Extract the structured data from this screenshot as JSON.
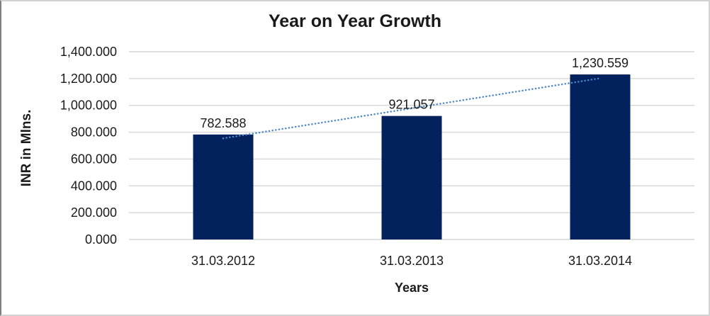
{
  "frame": {
    "background": "#ffffff",
    "border_color": "#d2d2d2",
    "border_left_color": "#7f7f7f"
  },
  "chart_data": {
    "type": "bar",
    "title": "Year on Year Growth",
    "xlabel": "Years",
    "ylabel": "INR in Mlns.",
    "categories": [
      "31.03.2012",
      "31.03.2013",
      "31.03.2014"
    ],
    "values": [
      782.588,
      921.057,
      1230.559
    ],
    "value_labels": [
      "782.588",
      "921.057",
      "1,230.559"
    ],
    "ylim": [
      0,
      1400
    ],
    "ytick_step": 200,
    "ytick_labels": [
      "0.000",
      "200.000",
      "400.000",
      "600.000",
      "800.000",
      "1,000.000",
      "1,200.000",
      "1,400.000"
    ],
    "grid": true,
    "legend_position": "none",
    "bar_color": "#03215c",
    "gridline_color": "#d6d6d6",
    "text_color": "#1a1a1a",
    "trendline": {
      "type": "linear",
      "style": "dotted",
      "color": "#4e87c8"
    }
  }
}
